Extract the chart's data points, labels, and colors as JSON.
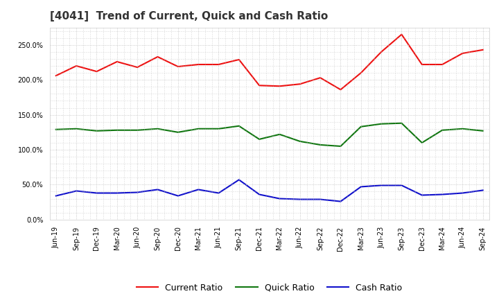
{
  "title": "[4041]  Trend of Current, Quick and Cash Ratio",
  "labels": [
    "Jun-19",
    "Sep-19",
    "Dec-19",
    "Mar-20",
    "Jun-20",
    "Sep-20",
    "Dec-20",
    "Mar-21",
    "Jun-21",
    "Sep-21",
    "Dec-21",
    "Mar-22",
    "Jun-22",
    "Sep-22",
    "Dec-22",
    "Mar-23",
    "Jun-23",
    "Sep-23",
    "Dec-23",
    "Mar-24",
    "Jun-24",
    "Sep-24"
  ],
  "current_ratio": [
    206,
    220,
    212,
    226,
    218,
    233,
    219,
    222,
    222,
    229,
    192,
    191,
    194,
    203,
    186,
    210,
    240,
    265,
    222,
    222,
    238,
    243
  ],
  "quick_ratio": [
    129,
    130,
    127,
    128,
    128,
    130,
    125,
    130,
    130,
    134,
    115,
    122,
    112,
    107,
    105,
    133,
    137,
    138,
    110,
    128,
    130,
    127
  ],
  "cash_ratio": [
    34,
    41,
    38,
    38,
    39,
    43,
    34,
    43,
    38,
    57,
    36,
    30,
    29,
    29,
    26,
    47,
    49,
    49,
    35,
    36,
    38,
    42
  ],
  "current_color": "#EE1111",
  "quick_color": "#117711",
  "cash_color": "#1111CC",
  "ylim": [
    0,
    275
  ],
  "yticks": [
    0,
    50,
    100,
    150,
    200,
    250
  ],
  "background_color": "#FFFFFF",
  "plot_bg_color": "#FFFFFF",
  "grid_color": "#BBBBBB",
  "legend_labels": [
    "Current Ratio",
    "Quick Ratio",
    "Cash Ratio"
  ],
  "title_fontsize": 11,
  "tick_fontsize": 7,
  "legend_fontsize": 9,
  "linewidth": 1.5
}
